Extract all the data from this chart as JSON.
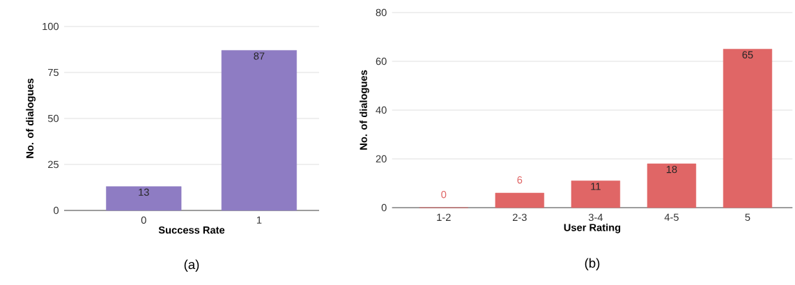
{
  "chart_data": [
    {
      "type": "bar",
      "categories": [
        "0",
        "1"
      ],
      "values": [
        13,
        87
      ],
      "color": "#8e7cc3",
      "xlabel": "Success Rate",
      "ylabel": "No. of dialogues",
      "ylim": [
        0,
        100
      ],
      "yticks": [
        0,
        25,
        50,
        75,
        100
      ],
      "grid": "y",
      "data_labels": true,
      "annotations": [
        "(a)"
      ]
    },
    {
      "type": "bar",
      "categories": [
        "1-2",
        "2-3",
        "3-4",
        "4-5",
        "5"
      ],
      "values": [
        0,
        6,
        11,
        18,
        65
      ],
      "color": "#e06666",
      "xlabel": "User Rating",
      "ylabel": "No. of dialogues",
      "ylim": [
        0,
        80
      ],
      "yticks": [
        0,
        20,
        40,
        60,
        80
      ],
      "grid": "y",
      "data_labels": true,
      "annotations": [
        "(b)"
      ]
    }
  ]
}
